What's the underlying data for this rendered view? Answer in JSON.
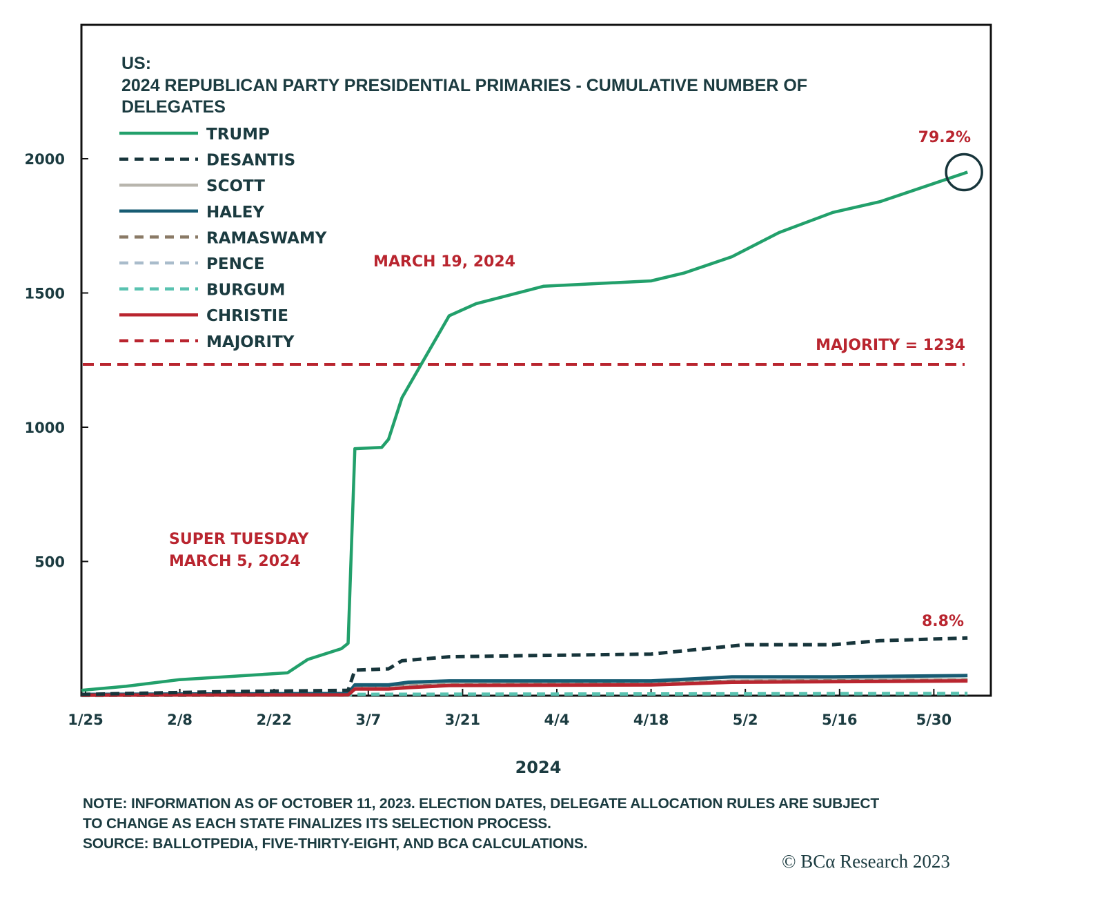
{
  "chart_data": {
    "type": "line",
    "title_lines": [
      "US:",
      "2024 REPUBLICAN PARTY PRESIDENTIAL PRIMARIES - CUMULATIVE NUMBER OF",
      "DELEGATES"
    ],
    "xlabel": "2024",
    "ylabel": "",
    "x_unit": "days since 1/25/2024",
    "x_ticks": [
      {
        "day": 0,
        "label": "1/25"
      },
      {
        "day": 14,
        "label": "2/8"
      },
      {
        "day": 28,
        "label": "2/22"
      },
      {
        "day": 42,
        "label": "3/7"
      },
      {
        "day": 56,
        "label": "3/21"
      },
      {
        "day": 70,
        "label": "4/4"
      },
      {
        "day": 84,
        "label": "4/18"
      },
      {
        "day": 98,
        "label": "5/2"
      },
      {
        "day": 112,
        "label": "5/16"
      },
      {
        "day": 126,
        "label": "5/30"
      }
    ],
    "xlim": [
      -0.6,
      134.5
    ],
    "y_ticks": [
      500,
      1000,
      1500,
      2000
    ],
    "ylim": [
      0,
      2500
    ],
    "grid": false,
    "legend_position": "top-left",
    "series": [
      {
        "name": "TRUMP",
        "color": "#22a06b",
        "dash": "solid",
        "points": [
          [
            -0.6,
            20
          ],
          [
            6,
            35
          ],
          [
            14,
            60
          ],
          [
            30,
            85
          ],
          [
            33,
            135
          ],
          [
            38,
            175
          ],
          [
            39,
            195
          ],
          [
            40,
            920
          ],
          [
            44,
            925
          ],
          [
            45,
            955
          ],
          [
            47,
            1110
          ],
          [
            54,
            1415
          ],
          [
            58,
            1460
          ],
          [
            68,
            1525
          ],
          [
            84,
            1545
          ],
          [
            89,
            1575
          ],
          [
            96,
            1635
          ],
          [
            103,
            1725
          ],
          [
            111,
            1800
          ],
          [
            118,
            1840
          ],
          [
            131,
            1950
          ]
        ]
      },
      {
        "name": "DESANTIS",
        "color": "#17353b",
        "dash": "dashed",
        "points": [
          [
            -0.6,
            5
          ],
          [
            20,
            15
          ],
          [
            39,
            20
          ],
          [
            40,
            95
          ],
          [
            45,
            100
          ],
          [
            47,
            130
          ],
          [
            54,
            145
          ],
          [
            68,
            150
          ],
          [
            84,
            155
          ],
          [
            92,
            175
          ],
          [
            98,
            190
          ],
          [
            111,
            190
          ],
          [
            118,
            205
          ],
          [
            131,
            215
          ]
        ]
      },
      {
        "name": "SCOTT",
        "color": "#b8b5ad",
        "dash": "solid",
        "points": [
          [
            -0.6,
            2
          ],
          [
            39,
            3
          ],
          [
            40,
            30
          ],
          [
            45,
            30
          ],
          [
            48,
            38
          ],
          [
            54,
            42
          ],
          [
            84,
            45
          ],
          [
            96,
            55
          ],
          [
            131,
            60
          ]
        ]
      },
      {
        "name": "HALEY",
        "color": "#175c73",
        "dash": "solid",
        "points": [
          [
            -0.6,
            5
          ],
          [
            39,
            8
          ],
          [
            40,
            40
          ],
          [
            45,
            40
          ],
          [
            48,
            50
          ],
          [
            54,
            55
          ],
          [
            84,
            55
          ],
          [
            96,
            70
          ],
          [
            111,
            70
          ],
          [
            131,
            75
          ]
        ]
      },
      {
        "name": "RAMASWAMY",
        "color": "#8a7a66",
        "dash": "dashed",
        "points": [
          [
            -0.6,
            2
          ],
          [
            39,
            3
          ],
          [
            40,
            30
          ],
          [
            45,
            30
          ],
          [
            48,
            36
          ],
          [
            54,
            40
          ],
          [
            84,
            44
          ],
          [
            96,
            54
          ],
          [
            131,
            58
          ]
        ]
      },
      {
        "name": "PENCE",
        "color": "#a9bccb",
        "dash": "dashed",
        "points": [
          [
            -0.6,
            1
          ],
          [
            39,
            2
          ],
          [
            40,
            28
          ],
          [
            45,
            28
          ],
          [
            48,
            34
          ],
          [
            54,
            38
          ],
          [
            84,
            42
          ],
          [
            96,
            52
          ],
          [
            131,
            56
          ]
        ]
      },
      {
        "name": "BURGUM",
        "color": "#59c2b0",
        "dash": "dashed",
        "points": [
          [
            -0.6,
            1
          ],
          [
            39,
            2
          ],
          [
            40,
            5
          ],
          [
            131,
            8
          ]
        ]
      },
      {
        "name": "CHRISTIE",
        "color": "#b9252f",
        "dash": "solid",
        "points": [
          [
            -0.6,
            2
          ],
          [
            39,
            3
          ],
          [
            40,
            25
          ],
          [
            45,
            25
          ],
          [
            48,
            30
          ],
          [
            54,
            38
          ],
          [
            84,
            40
          ],
          [
            96,
            50
          ],
          [
            131,
            55
          ]
        ]
      },
      {
        "name": "MAJORITY",
        "color": "#b9252f",
        "dash": "dashed",
        "points": [
          [
            -0.6,
            1234
          ],
          [
            131,
            1234
          ]
        ]
      }
    ],
    "annotations": [
      {
        "text": "79.2%",
        "near": "TRUMP end",
        "day": 131,
        "value": 1950
      },
      {
        "text": "8.8%",
        "near": "DESANTIS end",
        "day": 131,
        "value": 215
      },
      {
        "text": "MAJORITY = 1234",
        "near": "MAJORITY line",
        "value": 1234
      },
      {
        "text": "MARCH 19, 2024",
        "near": "Trump crosses majority"
      },
      {
        "text": "SUPER TUESDAY",
        "near": "March 5 jump"
      },
      {
        "text": "MARCH 5, 2024",
        "near": "March 5 jump"
      }
    ]
  },
  "footer": {
    "note_lines": [
      "NOTE: INFORMATION AS OF OCTOBER 11, 2023. ELECTION DATES, DELEGATE ALLOCATION RULES ARE SUBJECT",
      "TO CHANGE AS EACH STATE FINALIZES ITS SELECTION PROCESS.",
      "SOURCE: BALLOTPEDIA, FIVE-THIRTY-EIGHT, AND BCA CALCULATIONS."
    ],
    "copyright": "© BCα Research 2023"
  },
  "colors": {
    "text": "#1b3b40",
    "annotation": "#b9252f",
    "frame": "#111111",
    "highlight_circle": "#17353b"
  }
}
